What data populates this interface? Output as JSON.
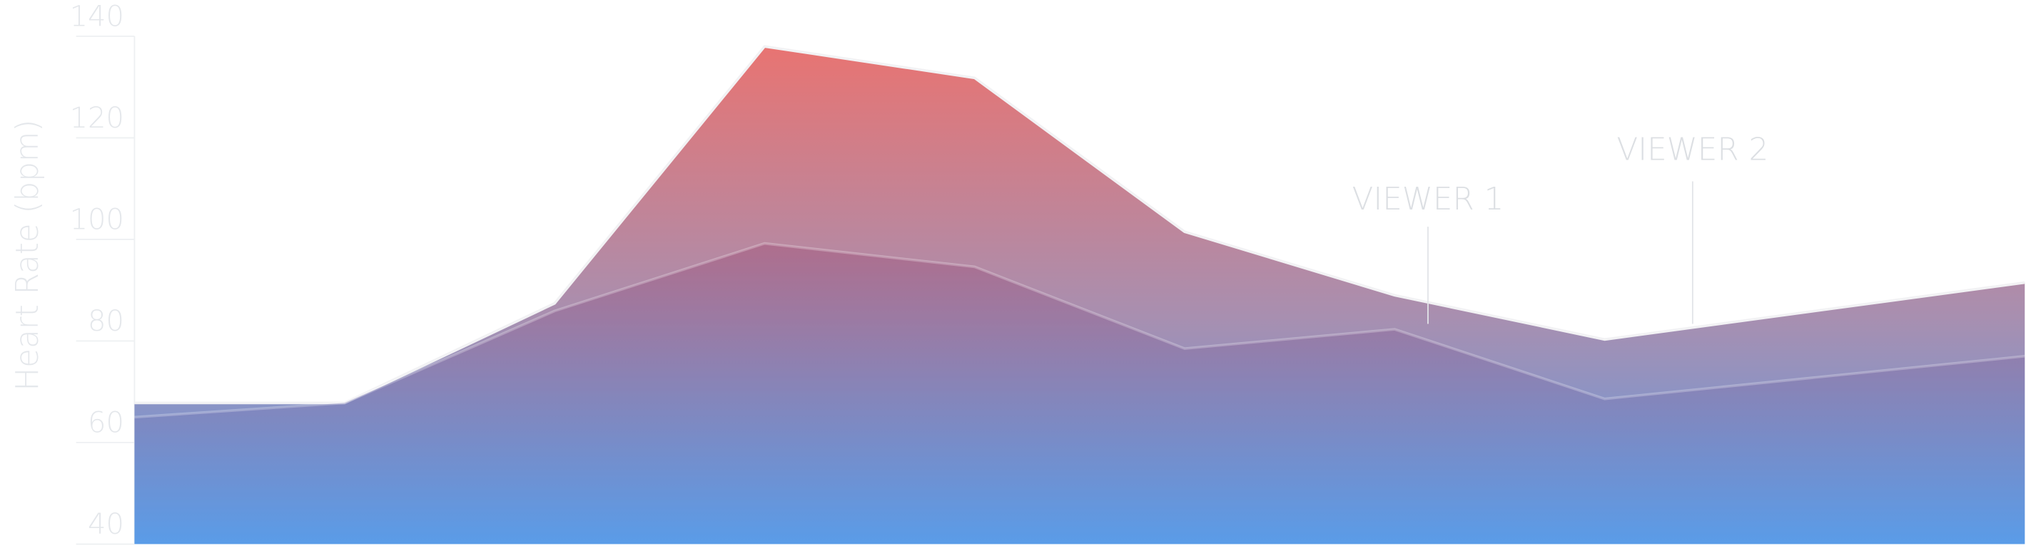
{
  "chart_data": {
    "type": "area",
    "y_label": "Heart Rate (bpm)",
    "x": [
      0,
      1,
      2,
      3,
      4,
      5,
      6,
      7,
      9
    ],
    "xlim": [
      0,
      9
    ],
    "ylim": [
      40,
      140
    ],
    "yticks": [
      40,
      60,
      80,
      100,
      120,
      140
    ],
    "series": [
      {
        "color": "#e8736e",
        "values": [
          67.8,
          67.8,
          87.4,
          138,
          131.8,
          101.5,
          89,
          80.3,
          91.5
        ]
      },
      {
        "color": "#8c6fa8",
        "values": [
          65,
          67.8,
          85.9,
          99.2,
          94.6,
          78.5,
          82.3,
          68.6,
          77
        ]
      }
    ],
    "annotations": [
      "VIEWER 1",
      "VIEWER 2"
    ]
  }
}
